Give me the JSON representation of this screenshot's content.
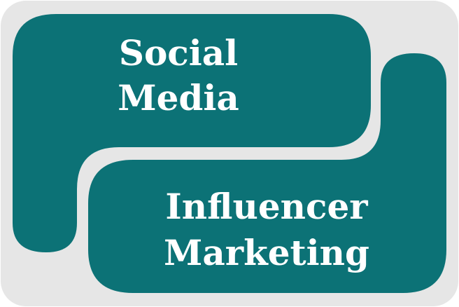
{
  "colors": {
    "background": "#e6e6e6",
    "shape": "#0c7276",
    "text": "#ffffff"
  },
  "top_block": {
    "line1": "Social",
    "line2": "Media"
  },
  "bottom_block": {
    "line1": "Influencer",
    "line2": "Marketing"
  }
}
